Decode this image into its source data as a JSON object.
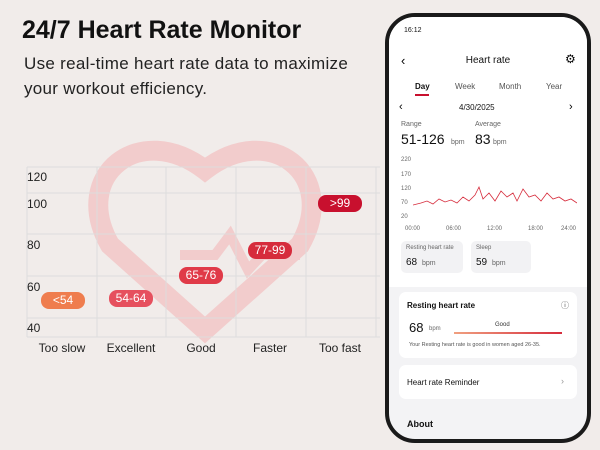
{
  "header": {
    "title": "24/7 Heart Rate Monitor",
    "subtitle_lines": [
      "Use real-time heart rate data to maximize",
      "your workout efficiency."
    ]
  },
  "zone_chart": {
    "y_labels": [
      "120",
      "100",
      "80",
      "60",
      "40"
    ],
    "zones": [
      {
        "category": "Too slow",
        "label": "<54"
      },
      {
        "category": "Excellent",
        "label": "54-64"
      },
      {
        "category": "Good",
        "label": "65-76"
      },
      {
        "category": "Faster",
        "label": "77-99"
      },
      {
        "category": "Too fast",
        "label": ">99"
      }
    ]
  },
  "phone": {
    "time": "16:12",
    "title": "Heart rate",
    "tabs": [
      "Day",
      "Week",
      "Month",
      "Year"
    ],
    "date": "4/30/2025",
    "range": {
      "label": "Range",
      "value": "51-126",
      "unit": "bpm"
    },
    "average": {
      "label": "Average",
      "value": "83",
      "unit": "bpm"
    },
    "chart_y_labels": [
      "220",
      "170",
      "120",
      "70",
      "20"
    ],
    "chart_x_labels": [
      "00:00",
      "06:00",
      "12:00",
      "18:00",
      "24:00"
    ],
    "small_cards": [
      {
        "label": "Resting heart rate",
        "value": "68",
        "unit": "bpm"
      },
      {
        "label": "Sleep",
        "value": "59",
        "unit": "bpm"
      }
    ],
    "resting_card": {
      "title": "Resting heart rate",
      "value": "68",
      "unit": "bpm",
      "status": "Good",
      "note": "Your Resting heart rate is good in women aged 26-35."
    },
    "reminder": "Heart rate Reminder",
    "about": "About"
  }
}
